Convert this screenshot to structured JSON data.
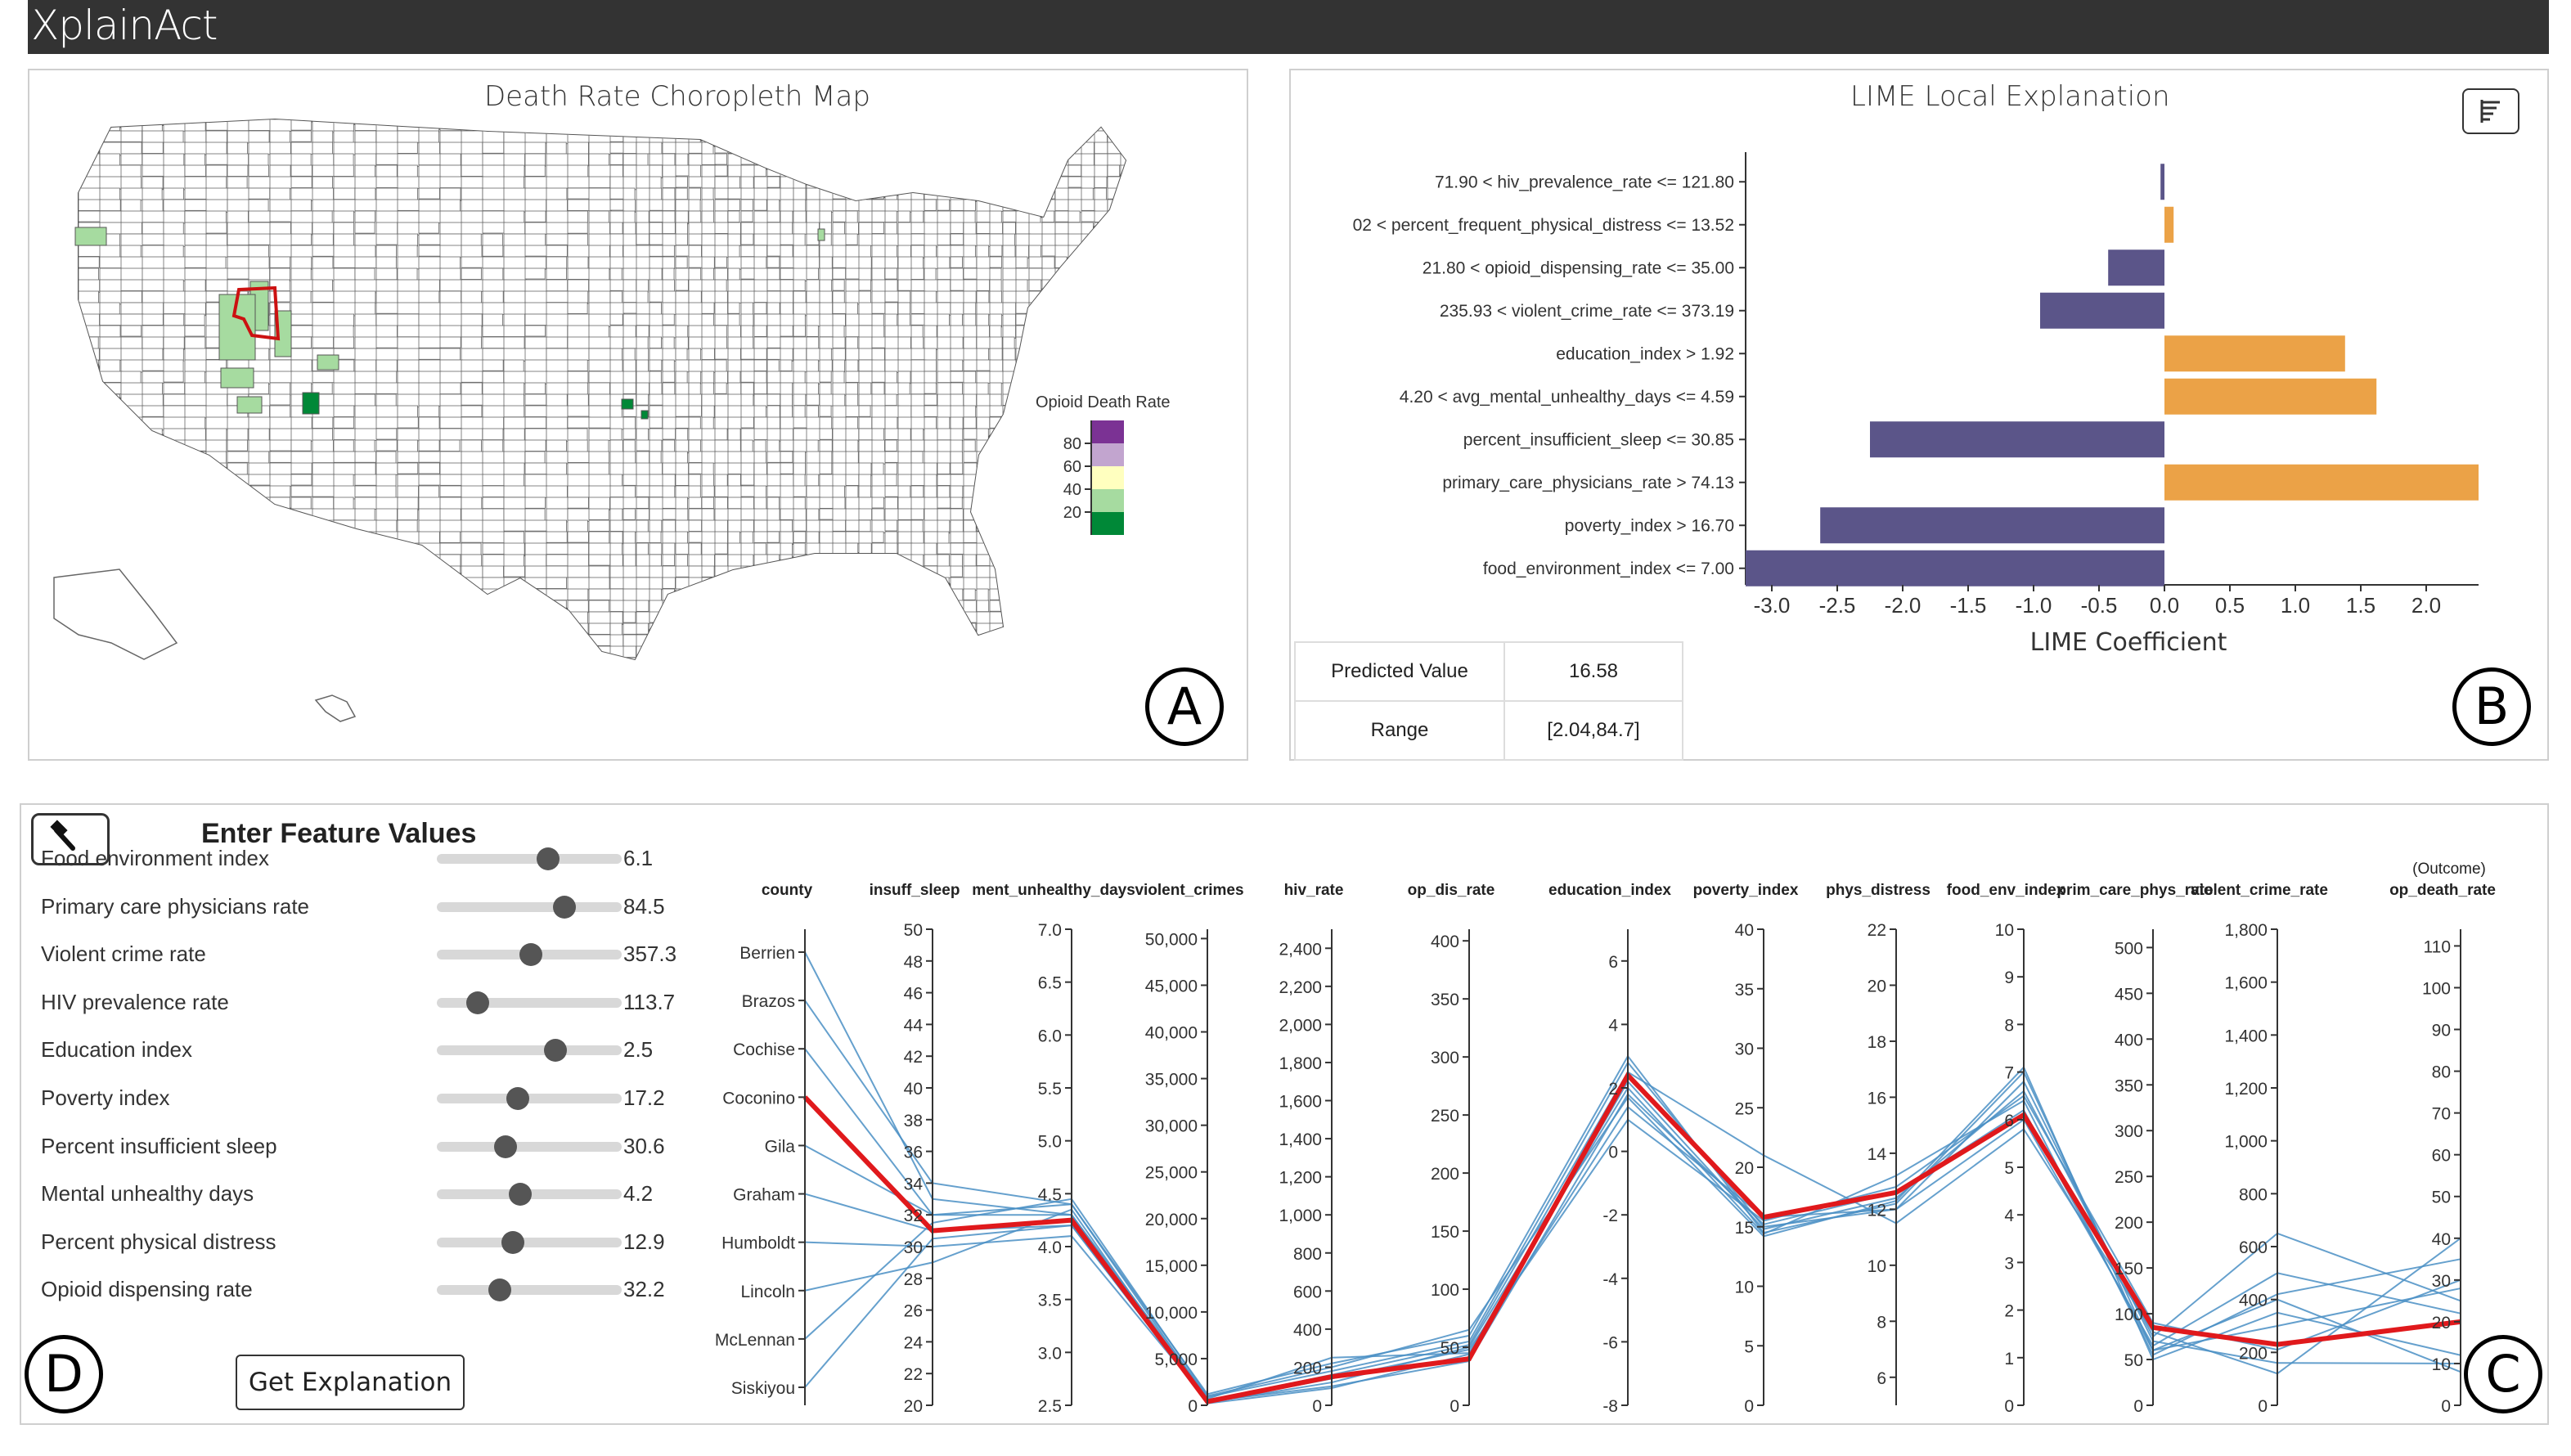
{
  "app": {
    "title": "XplainAct"
  },
  "panel_labels": {
    "a": "A",
    "b": "B",
    "c": "C",
    "d": "D"
  },
  "map": {
    "title": "Death Rate Choropleth Map",
    "legend": {
      "title": "Opioid Death Rate",
      "ticks": [
        "80",
        "60",
        "40",
        "20"
      ],
      "colors": [
        "#7b3294",
        "#c2a5cf",
        "#ffffbf",
        "#a6dba0",
        "#008837"
      ]
    },
    "base_fill": "#ffffff",
    "border_color": "#555555",
    "selected_outline": "#cc1111"
  },
  "lime": {
    "title": "LIME Local Explanation",
    "xlabel": "LIME Coefficient",
    "negative_color": "#5b5589",
    "positive_color": "#eba247",
    "summary": [
      {
        "key": "Predicted Value",
        "value": "16.58"
      },
      {
        "key": "Range",
        "value": "[2.04,84.7]"
      }
    ]
  },
  "chart_data": [
    {
      "type": "bar",
      "orientation": "horizontal",
      "title": "LIME Local Explanation",
      "xlabel": "LIME Coefficient",
      "ylabel": "",
      "xlim": [
        -3.2,
        2.4
      ],
      "xticks": [
        "-3.0",
        "-2.5",
        "-2.0",
        "-1.5",
        "-1.0",
        "-0.5",
        "0.0",
        "0.5",
        "1.0",
        "1.5",
        "2.0"
      ],
      "categories": [
        "71.90 < hiv_prevalence_rate <= 121.80",
        "02 < percent_frequent_physical_distress <= 13.52",
        "21.80 < opioid_dispensing_rate <= 35.00",
        "235.93 < violent_crime_rate <= 373.19",
        "education_index > 1.92",
        "4.20 < avg_mental_unhealthy_days <= 4.59",
        "percent_insufficient_sleep <= 30.85",
        "primary_care_physicians_rate > 74.13",
        "poverty_index > 16.70",
        "food_environment_index <= 7.00"
      ],
      "values": [
        -0.03,
        0.07,
        -0.43,
        -0.95,
        1.38,
        1.62,
        -2.25,
        2.4,
        -2.63,
        -3.2
      ]
    },
    {
      "type": "parallel-coordinates",
      "axes": [
        {
          "name": "county",
          "kind": "categorical",
          "ticks": [
            "Berrien",
            "Brazos",
            "Cochise",
            "Coconino",
            "Gila",
            "Graham",
            "Humboldt",
            "Lincoln",
            "McLennan",
            "Siskiyou"
          ]
        },
        {
          "name": "insuff_sleep",
          "min": 20,
          "max": 50,
          "ticks": [
            "20",
            "22",
            "24",
            "26",
            "28",
            "30",
            "32",
            "34",
            "36",
            "38",
            "40",
            "42",
            "44",
            "46",
            "48",
            "50"
          ]
        },
        {
          "name": "ment_unhealthy_days",
          "min": 2.5,
          "max": 7.0,
          "ticks": [
            "2.5",
            "3.0",
            "3.5",
            "4.0",
            "4.5",
            "5.0",
            "5.5",
            "6.0",
            "6.5",
            "7.0"
          ]
        },
        {
          "name": "violent_crimes",
          "min": 0,
          "max": 51000,
          "ticks": [
            "0",
            "5,000",
            "10,000",
            "15,000",
            "20,000",
            "25,000",
            "30,000",
            "35,000",
            "40,000",
            "45,000",
            "50,000"
          ]
        },
        {
          "name": "hiv_rate",
          "min": 0,
          "max": 2500,
          "ticks": [
            "0",
            "200",
            "400",
            "600",
            "800",
            "1,000",
            "1,200",
            "1,400",
            "1,600",
            "1,800",
            "2,000",
            "2,200",
            "2,400"
          ]
        },
        {
          "name": "op_dis_rate",
          "min": 0,
          "max": 410,
          "ticks": [
            "0",
            "50",
            "100",
            "150",
            "200",
            "250",
            "300",
            "350",
            "400"
          ]
        },
        {
          "name": "education_index",
          "min": -8,
          "max": 7,
          "ticks": [
            "-8",
            "-6",
            "-4",
            "-2",
            "0",
            "2",
            "4",
            "6"
          ]
        },
        {
          "name": "poverty_index",
          "min": 0,
          "max": 40,
          "ticks": [
            "0",
            "5",
            "10",
            "15",
            "20",
            "25",
            "30",
            "35",
            "40"
          ]
        },
        {
          "name": "phys_distress",
          "min": 5,
          "max": 22,
          "ticks": [
            "6",
            "8",
            "10",
            "12",
            "14",
            "16",
            "18",
            "20",
            "22"
          ]
        },
        {
          "name": "food_env_index",
          "min": 0,
          "max": 10,
          "ticks": [
            "0",
            "1",
            "2",
            "3",
            "4",
            "5",
            "6",
            "7",
            "8",
            "9",
            "10"
          ]
        },
        {
          "name": "prim_care_phys_rate",
          "min": 0,
          "max": 520,
          "ticks": [
            "0",
            "50",
            "100",
            "150",
            "200",
            "250",
            "300",
            "350",
            "400",
            "450",
            "500"
          ]
        },
        {
          "name": "violent_crime_rate",
          "min": 0,
          "max": 1800,
          "ticks": [
            "0",
            "200",
            "400",
            "600",
            "800",
            "1,000",
            "1,200",
            "1,400",
            "1,600",
            "1,800"
          ]
        },
        {
          "name": "op_death_rate",
          "min": 0,
          "max": 114,
          "ticks": [
            "0",
            "10",
            "20",
            "30",
            "40",
            "50",
            "60",
            "70",
            "80",
            "90",
            "100",
            "110"
          ],
          "caption": "(Outcome)"
        }
      ],
      "highlight_color": "#e0191c",
      "line_color": "#4a8fc4",
      "lines": [
        {
          "county": "Coconino",
          "highlight": true,
          "values": [
            31,
            4.25,
            400,
            150,
            40,
            2.4,
            15.8,
            12.6,
            6.1,
            85,
            230,
            20
          ]
        },
        {
          "county": "Berrien",
          "values": [
            33,
            4.3,
            900,
            180,
            55,
            2.8,
            15.0,
            12.0,
            6.8,
            70,
            160,
            10
          ]
        },
        {
          "county": "Brazos",
          "values": [
            34,
            4.4,
            1200,
            220,
            60,
            3.0,
            14.5,
            12.2,
            7.0,
            60,
            400,
            8
          ]
        },
        {
          "county": "Cochise",
          "values": [
            32,
            4.4,
            700,
            250,
            45,
            2.2,
            14.8,
            12.4,
            6.6,
            75,
            650,
            25
          ]
        },
        {
          "county": "Gila",
          "values": [
            32,
            4.3,
            300,
            120,
            50,
            2.0,
            14.4,
            13.2,
            6.4,
            55,
            420,
            35
          ]
        },
        {
          "county": "Graham",
          "values": [
            31,
            4.2,
            400,
            100,
            38,
            1.8,
            15.2,
            12.6,
            6.2,
            60,
            300,
            28
          ]
        },
        {
          "county": "Humboldt",
          "values": [
            30,
            4.1,
            500,
            160,
            52,
            2.5,
            21.0,
            11.5,
            5.8,
            80,
            120,
            40
          ]
        },
        {
          "county": "Lincoln",
          "values": [
            29,
            4.35,
            200,
            90,
            44,
            1.4,
            15.8,
            12.0,
            6.0,
            65,
            500,
            22
          ]
        },
        {
          "county": "McLennan",
          "values": [
            31.5,
            4.45,
            1000,
            200,
            65,
            1.7,
            14.2,
            12.3,
            7.1,
            50,
            350,
            12
          ]
        },
        {
          "county": "Siskiyou",
          "values": [
            30.5,
            4.2,
            300,
            140,
            48,
            1.0,
            15.5,
            12.8,
            6.5,
            90,
            210,
            30
          ]
        }
      ]
    }
  ],
  "features": {
    "title": "Enter Feature Values",
    "get_explanation": "Get Explanation",
    "items": [
      {
        "label": "Food environment index",
        "value": "6.1",
        "position": 0.6
      },
      {
        "label": "Primary care physicians rate",
        "value": "84.5",
        "position": 0.69
      },
      {
        "label": "Violent crime rate",
        "value": "357.3",
        "position": 0.51
      },
      {
        "label": "HIV prevalence rate",
        "value": "113.7",
        "position": 0.22
      },
      {
        "label": "Education index",
        "value": "2.5",
        "position": 0.64
      },
      {
        "label": "Poverty index",
        "value": "17.2",
        "position": 0.44
      },
      {
        "label": "Percent insufficient sleep",
        "value": "30.6",
        "position": 0.37
      },
      {
        "label": "Mental unhealthy days",
        "value": "4.2",
        "position": 0.45
      },
      {
        "label": "Percent physical distress",
        "value": "12.9",
        "position": 0.41
      },
      {
        "label": "Opioid dispensing rate",
        "value": "32.2",
        "position": 0.34
      }
    ]
  }
}
